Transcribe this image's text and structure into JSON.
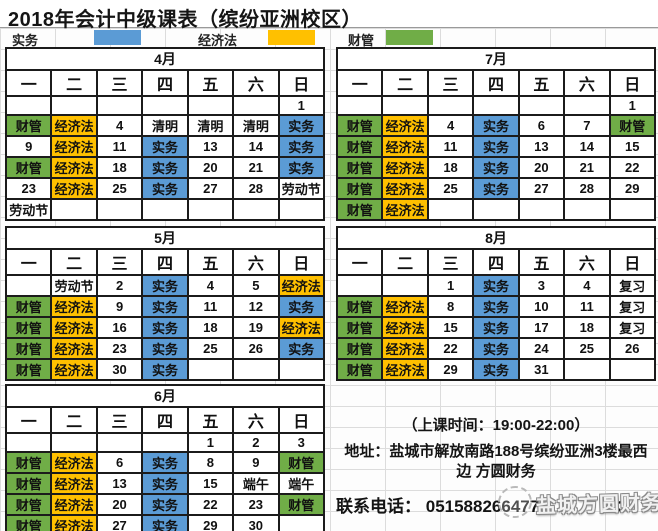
{
  "title": "2018年会计中级课表（缤纷亚洲校区）",
  "colors": {
    "blue": "#5B9BD5",
    "orange": "#FFC000",
    "green": "#70AD47"
  },
  "legend": {
    "items": [
      {
        "label": "实务",
        "color_key": "blue"
      },
      {
        "label": "经济法",
        "color_key": "orange"
      },
      {
        "label": "财管",
        "color_key": "green"
      }
    ]
  },
  "day_headers": [
    "一",
    "二",
    "三",
    "四",
    "五",
    "六",
    "日"
  ],
  "months": [
    {
      "name": "4月",
      "rows": [
        [
          [
            "",
            ""
          ],
          [
            "",
            ""
          ],
          [
            "",
            ""
          ],
          [
            "",
            ""
          ],
          [
            "",
            ""
          ],
          [
            "",
            ""
          ],
          [
            "1",
            ""
          ]
        ],
        [
          [
            "财管",
            "green"
          ],
          [
            "经济法",
            "orange"
          ],
          [
            "4",
            ""
          ],
          [
            "清明",
            ""
          ],
          [
            "清明",
            ""
          ],
          [
            "清明",
            ""
          ],
          [
            "实务",
            "blue"
          ]
        ],
        [
          [
            "9",
            ""
          ],
          [
            "经济法",
            "orange"
          ],
          [
            "11",
            ""
          ],
          [
            "实务",
            "blue"
          ],
          [
            "13",
            ""
          ],
          [
            "14",
            ""
          ],
          [
            "实务",
            "blue"
          ]
        ],
        [
          [
            "财管",
            "green"
          ],
          [
            "经济法",
            "orange"
          ],
          [
            "18",
            ""
          ],
          [
            "实务",
            "blue"
          ],
          [
            "20",
            ""
          ],
          [
            "21",
            ""
          ],
          [
            "实务",
            "blue"
          ]
        ],
        [
          [
            "23",
            ""
          ],
          [
            "经济法",
            "orange"
          ],
          [
            "25",
            ""
          ],
          [
            "实务",
            "blue"
          ],
          [
            "27",
            ""
          ],
          [
            "28",
            ""
          ],
          [
            "劳动节",
            ""
          ]
        ],
        [
          [
            "劳动节",
            ""
          ],
          [
            "",
            ""
          ],
          [
            "",
            ""
          ],
          [
            "",
            ""
          ],
          [
            "",
            ""
          ],
          [
            "",
            ""
          ],
          [
            "",
            ""
          ]
        ]
      ]
    },
    {
      "name": "7月",
      "rows": [
        [
          [
            "",
            ""
          ],
          [
            "",
            ""
          ],
          [
            "",
            ""
          ],
          [
            "",
            ""
          ],
          [
            "",
            ""
          ],
          [
            "",
            ""
          ],
          [
            "1",
            ""
          ]
        ],
        [
          [
            "财管",
            "green"
          ],
          [
            "经济法",
            "orange"
          ],
          [
            "4",
            ""
          ],
          [
            "实务",
            "blue"
          ],
          [
            "6",
            ""
          ],
          [
            "7",
            ""
          ],
          [
            "财管",
            "green"
          ]
        ],
        [
          [
            "财管",
            "green"
          ],
          [
            "经济法",
            "orange"
          ],
          [
            "11",
            ""
          ],
          [
            "实务",
            "blue"
          ],
          [
            "13",
            ""
          ],
          [
            "14",
            ""
          ],
          [
            "15",
            ""
          ]
        ],
        [
          [
            "财管",
            "green"
          ],
          [
            "经济法",
            "orange"
          ],
          [
            "18",
            ""
          ],
          [
            "实务",
            "blue"
          ],
          [
            "20",
            ""
          ],
          [
            "21",
            ""
          ],
          [
            "22",
            ""
          ]
        ],
        [
          [
            "财管",
            "green"
          ],
          [
            "经济法",
            "orange"
          ],
          [
            "25",
            ""
          ],
          [
            "实务",
            "blue"
          ],
          [
            "27",
            ""
          ],
          [
            "28",
            ""
          ],
          [
            "29",
            ""
          ]
        ],
        [
          [
            "财管",
            "green"
          ],
          [
            "经济法",
            "orange"
          ],
          [
            "",
            ""
          ],
          [
            "",
            ""
          ],
          [
            "",
            ""
          ],
          [
            "",
            ""
          ],
          [
            "",
            ""
          ]
        ]
      ]
    },
    {
      "name": "5月",
      "rows": [
        [
          [
            "",
            ""
          ],
          [
            "劳动节",
            ""
          ],
          [
            "2",
            ""
          ],
          [
            "实务",
            "blue"
          ],
          [
            "4",
            ""
          ],
          [
            "5",
            ""
          ],
          [
            "经济法",
            "orange"
          ]
        ],
        [
          [
            "财管",
            "green"
          ],
          [
            "经济法",
            "orange"
          ],
          [
            "9",
            ""
          ],
          [
            "实务",
            "blue"
          ],
          [
            "11",
            ""
          ],
          [
            "12",
            ""
          ],
          [
            "实务",
            "blue"
          ]
        ],
        [
          [
            "财管",
            "green"
          ],
          [
            "经济法",
            "orange"
          ],
          [
            "16",
            ""
          ],
          [
            "实务",
            "blue"
          ],
          [
            "18",
            ""
          ],
          [
            "19",
            ""
          ],
          [
            "经济法",
            "orange"
          ]
        ],
        [
          [
            "财管",
            "green"
          ],
          [
            "经济法",
            "orange"
          ],
          [
            "23",
            ""
          ],
          [
            "实务",
            "blue"
          ],
          [
            "25",
            ""
          ],
          [
            "26",
            ""
          ],
          [
            "实务",
            "blue"
          ]
        ],
        [
          [
            "财管",
            "green"
          ],
          [
            "经济法",
            "orange"
          ],
          [
            "30",
            ""
          ],
          [
            "实务",
            "blue"
          ],
          [
            "",
            ""
          ],
          [
            "",
            ""
          ],
          [
            "",
            ""
          ]
        ]
      ]
    },
    {
      "name": "8月",
      "rows": [
        [
          [
            "",
            ""
          ],
          [
            "",
            ""
          ],
          [
            "1",
            ""
          ],
          [
            "实务",
            "blue"
          ],
          [
            "3",
            ""
          ],
          [
            "4",
            ""
          ],
          [
            "复习",
            ""
          ]
        ],
        [
          [
            "财管",
            "green"
          ],
          [
            "经济法",
            "orange"
          ],
          [
            "8",
            ""
          ],
          [
            "实务",
            "blue"
          ],
          [
            "10",
            ""
          ],
          [
            "11",
            ""
          ],
          [
            "复习",
            ""
          ]
        ],
        [
          [
            "财管",
            "green"
          ],
          [
            "经济法",
            "orange"
          ],
          [
            "15",
            ""
          ],
          [
            "实务",
            "blue"
          ],
          [
            "17",
            ""
          ],
          [
            "18",
            ""
          ],
          [
            "复习",
            ""
          ]
        ],
        [
          [
            "财管",
            "green"
          ],
          [
            "经济法",
            "orange"
          ],
          [
            "22",
            ""
          ],
          [
            "实务",
            "blue"
          ],
          [
            "24",
            ""
          ],
          [
            "25",
            ""
          ],
          [
            "26",
            ""
          ]
        ],
        [
          [
            "财管",
            "green"
          ],
          [
            "经济法",
            "orange"
          ],
          [
            "29",
            ""
          ],
          [
            "实务",
            "blue"
          ],
          [
            "31",
            ""
          ],
          [
            "",
            ""
          ],
          [
            "",
            ""
          ]
        ]
      ]
    },
    {
      "name": "6月",
      "rows": [
        [
          [
            "",
            ""
          ],
          [
            "",
            ""
          ],
          [
            "",
            ""
          ],
          [
            "",
            ""
          ],
          [
            "1",
            ""
          ],
          [
            "2",
            ""
          ],
          [
            "3",
            ""
          ]
        ],
        [
          [
            "财管",
            "green"
          ],
          [
            "经济法",
            "orange"
          ],
          [
            "6",
            ""
          ],
          [
            "实务",
            "blue"
          ],
          [
            "8",
            ""
          ],
          [
            "9",
            ""
          ],
          [
            "财管",
            "green"
          ]
        ],
        [
          [
            "财管",
            "green"
          ],
          [
            "经济法",
            "orange"
          ],
          [
            "13",
            ""
          ],
          [
            "实务",
            "blue"
          ],
          [
            "15",
            ""
          ],
          [
            "端午",
            ""
          ],
          [
            "端午",
            ""
          ]
        ],
        [
          [
            "财管",
            "green"
          ],
          [
            "经济法",
            "orange"
          ],
          [
            "20",
            ""
          ],
          [
            "实务",
            "blue"
          ],
          [
            "22",
            ""
          ],
          [
            "23",
            ""
          ],
          [
            "财管",
            "green"
          ]
        ],
        [
          [
            "财管",
            "green"
          ],
          [
            "经济法",
            "orange"
          ],
          [
            "27",
            ""
          ],
          [
            "实务",
            "blue"
          ],
          [
            "29",
            ""
          ],
          [
            "30",
            ""
          ],
          [
            "",
            ""
          ]
        ]
      ]
    }
  ],
  "info": {
    "class_time": "（上课时间：19:00-22:00）",
    "address": "地址：盐城市解放南路188号缤纷亚洲3楼最西边  方圆财务",
    "phone_label": "联系电话：",
    "phone": "051588266477/",
    "phone_tail": "33",
    "watermark": "盐城方圆财务"
  }
}
